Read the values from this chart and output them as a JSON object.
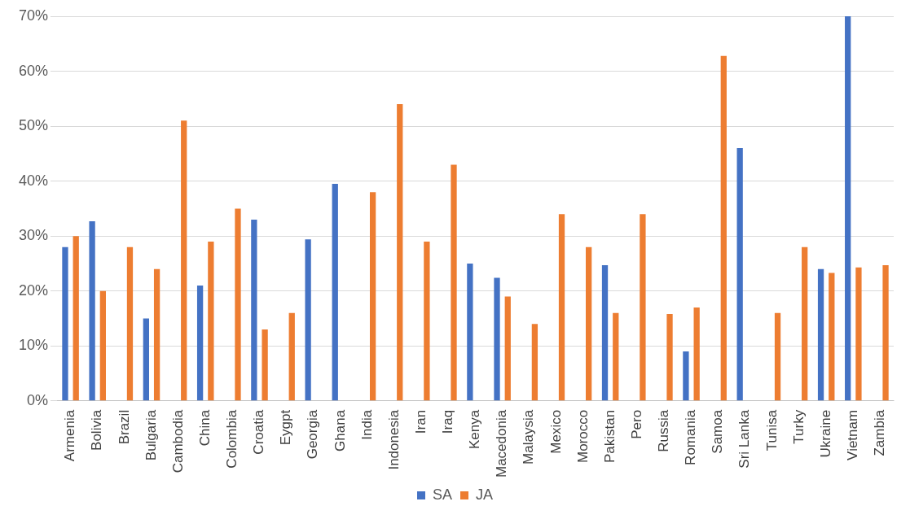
{
  "chart_data": {
    "type": "bar",
    "categories": [
      "Armenia",
      "Bolivia",
      "Brazil",
      "Bulgaria",
      "Cambodia",
      "China",
      "Colombia",
      "Croatia",
      "Eygpt",
      "Georgia",
      "Ghana",
      "India",
      "Indonesia",
      "Iran",
      "Iraq",
      "Kenya",
      "Macedonia",
      "Malaysia",
      "Mexico",
      "Morocco",
      "Pakistan",
      "Pero",
      "Russia",
      "Romania",
      "Samoa",
      "Sri Lanka",
      "Tunisa",
      "Turky",
      "Ukraine",
      "Vietnam",
      "Zambia"
    ],
    "series": [
      {
        "name": "SA",
        "color": "#4472c4",
        "values": [
          28,
          32.7,
          null,
          15,
          null,
          21,
          null,
          33,
          null,
          29.4,
          39.5,
          null,
          null,
          null,
          null,
          25,
          22.4,
          null,
          null,
          null,
          24.7,
          null,
          null,
          9,
          null,
          46,
          null,
          null,
          24,
          70,
          null
        ]
      },
      {
        "name": "JA",
        "color": "#ed7d31",
        "values": [
          30,
          20,
          28,
          24,
          51,
          29,
          35,
          13,
          16,
          null,
          null,
          38,
          54,
          29,
          43,
          null,
          19,
          14,
          34,
          28,
          16,
          34,
          15.8,
          17,
          62.8,
          null,
          16,
          28,
          23.3,
          24.3,
          24.7
        ]
      }
    ],
    "ylim": [
      0,
      70
    ],
    "yticks": [
      {
        "value": 0,
        "label": "0%"
      },
      {
        "value": 10,
        "label": "10%"
      },
      {
        "value": 20,
        "label": "20%"
      },
      {
        "value": 30,
        "label": "30%"
      },
      {
        "value": 40,
        "label": "40%"
      },
      {
        "value": 50,
        "label": "50%"
      },
      {
        "value": 60,
        "label": "60%"
      },
      {
        "value": 70,
        "label": "70%"
      }
    ],
    "grid": "y",
    "legend": "bottom"
  }
}
